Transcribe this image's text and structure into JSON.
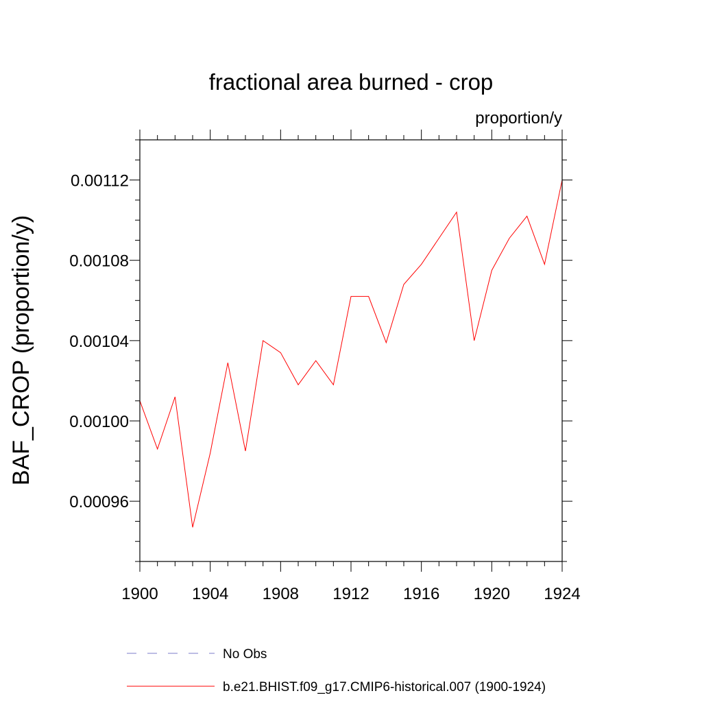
{
  "chart_data": {
    "type": "line",
    "title": "fractional area burned - crop",
    "units": "proportion/y",
    "ylabel": "BAF_CROP  (proportion/y)",
    "xlabel": "",
    "xlim": [
      1900,
      1924
    ],
    "ylim": [
      0.00093,
      0.00114
    ],
    "xticks": [
      1900,
      1904,
      1908,
      1912,
      1916,
      1920,
      1924
    ],
    "xtick_labels": [
      "1900",
      "1904",
      "1908",
      "1912",
      "1916",
      "1920",
      "1924"
    ],
    "yticks": [
      0.00096,
      0.001,
      0.00104,
      0.00108,
      0.00112
    ],
    "ytick_labels": [
      "0.00096",
      "0.00100",
      "0.00104",
      "0.00108",
      "0.00112"
    ],
    "x": [
      1900,
      1901,
      1902,
      1903,
      1904,
      1905,
      1906,
      1907,
      1908,
      1909,
      1910,
      1911,
      1912,
      1913,
      1914,
      1915,
      1916,
      1917,
      1918,
      1919,
      1920,
      1921,
      1922,
      1923,
      1924
    ],
    "series": [
      {
        "name": "b.e21.BHIST.f09_g17.CMIP6-historical.007 (1900-1924)",
        "color": "#ff0000",
        "dash": "solid",
        "values": [
          0.00101,
          0.000986,
          0.001012,
          0.000947,
          0.000984,
          0.001029,
          0.000985,
          0.00104,
          0.001034,
          0.001018,
          0.00103,
          0.001018,
          0.001062,
          0.001062,
          0.001039,
          0.001068,
          0.001078,
          0.001091,
          0.001104,
          0.00104,
          0.001075,
          0.001091,
          0.001102,
          0.001078,
          0.00112
        ]
      }
    ],
    "legend": [
      {
        "label": "No Obs",
        "color": "#7b7bc8",
        "dash": "dashed"
      },
      {
        "label": "b.e21.BHIST.f09_g17.CMIP6-historical.007 (1900-1924)",
        "color": "#ff0000",
        "dash": "solid"
      }
    ],
    "legend_position": "bottom",
    "grid": false
  }
}
